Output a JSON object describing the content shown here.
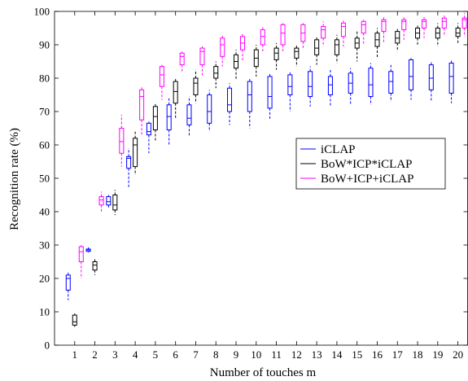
{
  "chart_data": {
    "type": "box",
    "title": "",
    "xlabel": "Number of touches m",
    "ylabel": "Recognition rate (%)",
    "ylim": [
      0,
      100
    ],
    "yticks": [
      0,
      10,
      20,
      30,
      40,
      50,
      60,
      70,
      80,
      90,
      100
    ],
    "categories": [
      "1",
      "2",
      "3",
      "4",
      "5",
      "6",
      "7",
      "8",
      "9",
      "10",
      "11",
      "12",
      "13",
      "14",
      "15",
      "16",
      "17",
      "18",
      "19",
      "20"
    ],
    "grid": false,
    "legend_position": "right-middle",
    "series": [
      {
        "name": "iCLAP",
        "color": "#0000ff",
        "boxes": [
          {
            "x": 1,
            "lo": 13.5,
            "q1": 16.5,
            "med": 20.0,
            "q3": 21.0,
            "hi": 22.0
          },
          {
            "x": 2,
            "lo": 27.8,
            "q1": 28.1,
            "med": 28.5,
            "q3": 28.8,
            "hi": 29.3
          },
          {
            "x": 3,
            "lo": 41.0,
            "q1": 42.0,
            "med": 43.0,
            "q3": 44.5,
            "hi": 45.0
          },
          {
            "x": 4,
            "lo": 47.0,
            "q1": 53.0,
            "med": 56.0,
            "q3": 56.5,
            "hi": 59.0
          },
          {
            "x": 5,
            "lo": 57.5,
            "q1": 63.0,
            "med": 64.0,
            "q3": 66.5,
            "hi": 67.0
          },
          {
            "x": 6,
            "lo": 60.0,
            "q1": 64.5,
            "med": 68.5,
            "q3": 72.0,
            "hi": 74.0
          },
          {
            "x": 7,
            "lo": 62.5,
            "q1": 66.0,
            "med": 68.0,
            "q3": 72.0,
            "hi": 74.5
          },
          {
            "x": 8,
            "lo": 64.0,
            "q1": 66.5,
            "med": 70.0,
            "q3": 75.0,
            "hi": 76.5
          },
          {
            "x": 9,
            "lo": 66.0,
            "q1": 70.0,
            "med": 72.0,
            "q3": 77.0,
            "hi": 78.5
          },
          {
            "x": 10,
            "lo": 65.0,
            "q1": 70.0,
            "med": 75.0,
            "q3": 79.0,
            "hi": 80.0
          },
          {
            "x": 11,
            "lo": 67.5,
            "q1": 71.0,
            "med": 74.5,
            "q3": 80.5,
            "hi": 81.5
          },
          {
            "x": 12,
            "lo": 70.0,
            "q1": 75.0,
            "med": 77.5,
            "q3": 81.0,
            "hi": 82.0
          },
          {
            "x": 13,
            "lo": 71.5,
            "q1": 74.5,
            "med": 77.5,
            "q3": 82.0,
            "hi": 83.5
          },
          {
            "x": 14,
            "lo": 71.5,
            "q1": 75.0,
            "med": 78.0,
            "q3": 80.5,
            "hi": 82.5
          },
          {
            "x": 15,
            "lo": 72.0,
            "q1": 75.5,
            "med": 78.5,
            "q3": 81.5,
            "hi": 83.0
          },
          {
            "x": 16,
            "lo": 72.0,
            "q1": 74.5,
            "med": 78.0,
            "q3": 83.0,
            "hi": 84.5
          },
          {
            "x": 17,
            "lo": 73.0,
            "q1": 75.5,
            "med": 79.0,
            "q3": 82.0,
            "hi": 84.0
          },
          {
            "x": 18,
            "lo": 73.5,
            "q1": 76.5,
            "med": 80.5,
            "q3": 85.5,
            "hi": 86.0
          },
          {
            "x": 19,
            "lo": 73.0,
            "q1": 76.5,
            "med": 80.0,
            "q3": 84.0,
            "hi": 85.0
          },
          {
            "x": 20,
            "lo": 72.5,
            "q1": 75.5,
            "med": 80.5,
            "q3": 84.5,
            "hi": 85.5
          }
        ]
      },
      {
        "name": "BoW*ICP*iCLAP",
        "color": "#000000",
        "boxes": [
          {
            "x": 1,
            "lo": 5.5,
            "q1": 6.0,
            "med": 7.0,
            "q3": 9.0,
            "hi": 9.5
          },
          {
            "x": 2,
            "lo": 21.0,
            "q1": 22.5,
            "med": 24.0,
            "q3": 25.0,
            "hi": 26.0
          },
          {
            "x": 3,
            "lo": 39.0,
            "q1": 40.5,
            "med": 42.0,
            "q3": 45.0,
            "hi": 46.5
          },
          {
            "x": 4,
            "lo": 51.0,
            "q1": 53.5,
            "med": 60.0,
            "q3": 62.0,
            "hi": 64.0
          },
          {
            "x": 5,
            "lo": 61.0,
            "q1": 64.5,
            "med": 68.5,
            "q3": 71.5,
            "hi": 72.5
          },
          {
            "x": 6,
            "lo": 68.0,
            "q1": 72.5,
            "med": 76.0,
            "q3": 79.0,
            "hi": 80.0
          },
          {
            "x": 7,
            "lo": 72.5,
            "q1": 75.0,
            "med": 78.5,
            "q3": 80.0,
            "hi": 82.5
          },
          {
            "x": 8,
            "lo": 77.0,
            "q1": 80.0,
            "med": 81.5,
            "q3": 83.5,
            "hi": 85.0
          },
          {
            "x": 9,
            "lo": 79.5,
            "q1": 83.0,
            "med": 85.0,
            "q3": 87.0,
            "hi": 88.5
          },
          {
            "x": 10,
            "lo": 80.5,
            "q1": 83.5,
            "med": 86.0,
            "q3": 88.5,
            "hi": 90.0
          },
          {
            "x": 11,
            "lo": 82.5,
            "q1": 85.5,
            "med": 87.5,
            "q3": 89.0,
            "hi": 90.5
          },
          {
            "x": 12,
            "lo": 83.5,
            "q1": 86.0,
            "med": 88.0,
            "q3": 89.0,
            "hi": 90.0
          },
          {
            "x": 13,
            "lo": 84.0,
            "q1": 87.0,
            "med": 89.0,
            "q3": 91.5,
            "hi": 92.5
          },
          {
            "x": 14,
            "lo": 84.5,
            "q1": 87.0,
            "med": 90.0,
            "q3": 91.5,
            "hi": 93.0
          },
          {
            "x": 15,
            "lo": 85.0,
            "q1": 89.0,
            "med": 90.5,
            "q3": 92.0,
            "hi": 94.0
          },
          {
            "x": 16,
            "lo": 86.0,
            "q1": 89.5,
            "med": 91.5,
            "q3": 93.5,
            "hi": 95.0
          },
          {
            "x": 17,
            "lo": 88.0,
            "q1": 90.5,
            "med": 92.0,
            "q3": 94.0,
            "hi": 95.0
          },
          {
            "x": 18,
            "lo": 90.0,
            "q1": 92.0,
            "med": 93.5,
            "q3": 95.0,
            "hi": 96.0
          },
          {
            "x": 19,
            "lo": 89.5,
            "q1": 92.0,
            "med": 93.5,
            "q3": 95.0,
            "hi": 96.5
          },
          {
            "x": 20,
            "lo": 90.5,
            "q1": 92.5,
            "med": 93.5,
            "q3": 95.0,
            "hi": 96.5
          }
        ]
      },
      {
        "name": "BoW+ICP+iCLAP",
        "color": "#ff00ff",
        "boxes": [
          {
            "x": 1,
            "lo": 20.0,
            "q1": 25.0,
            "med": 28.0,
            "q3": 29.5,
            "hi": 30.0
          },
          {
            "x": 2,
            "lo": 40.0,
            "q1": 42.0,
            "med": 43.5,
            "q3": 44.5,
            "hi": 46.0
          },
          {
            "x": 3,
            "lo": 53.5,
            "q1": 57.5,
            "med": 61.0,
            "q3": 65.0,
            "hi": 69.0
          },
          {
            "x": 4,
            "lo": 63.0,
            "q1": 67.5,
            "med": 74.5,
            "q3": 76.5,
            "hi": 77.5
          },
          {
            "x": 5,
            "lo": 73.5,
            "q1": 77.5,
            "med": 81.0,
            "q3": 83.5,
            "hi": 84.0
          },
          {
            "x": 6,
            "lo": 82.0,
            "q1": 84.0,
            "med": 86.5,
            "q3": 87.5,
            "hi": 88.0
          },
          {
            "x": 7,
            "lo": 80.5,
            "q1": 84.0,
            "med": 88.0,
            "q3": 89.0,
            "hi": 89.5
          },
          {
            "x": 8,
            "lo": 83.5,
            "q1": 86.5,
            "med": 90.0,
            "q3": 92.0,
            "hi": 93.0
          },
          {
            "x": 9,
            "lo": 85.0,
            "q1": 88.5,
            "med": 90.5,
            "q3": 92.5,
            "hi": 93.5
          },
          {
            "x": 10,
            "lo": 87.5,
            "q1": 90.0,
            "med": 92.5,
            "q3": 94.5,
            "hi": 95.5
          },
          {
            "x": 11,
            "lo": 88.0,
            "q1": 90.0,
            "med": 93.5,
            "q3": 96.0,
            "hi": 96.5
          },
          {
            "x": 12,
            "lo": 88.5,
            "q1": 91.0,
            "med": 93.5,
            "q3": 96.0,
            "hi": 96.5
          },
          {
            "x": 13,
            "lo": 89.5,
            "q1": 92.0,
            "med": 94.5,
            "q3": 95.5,
            "hi": 97.0
          },
          {
            "x": 14,
            "lo": 89.5,
            "q1": 92.5,
            "med": 95.5,
            "q3": 96.5,
            "hi": 97.5
          },
          {
            "x": 15,
            "lo": 90.0,
            "q1": 93.5,
            "med": 96.0,
            "q3": 97.0,
            "hi": 97.5
          },
          {
            "x": 16,
            "lo": 90.5,
            "q1": 94.0,
            "med": 97.0,
            "q3": 97.5,
            "hi": 98.5
          },
          {
            "x": 17,
            "lo": 91.5,
            "q1": 94.5,
            "med": 97.0,
            "q3": 97.5,
            "hi": 98.5
          },
          {
            "x": 18,
            "lo": 92.0,
            "q1": 95.0,
            "med": 97.0,
            "q3": 97.5,
            "hi": 98.5
          },
          {
            "x": 19,
            "lo": 92.5,
            "q1": 95.0,
            "med": 97.0,
            "q3": 98.0,
            "hi": 99.0
          },
          {
            "x": 20,
            "lo": 92.5,
            "q1": 95.0,
            "med": 97.5,
            "q3": 98.0,
            "hi": 99.5
          }
        ]
      }
    ]
  }
}
